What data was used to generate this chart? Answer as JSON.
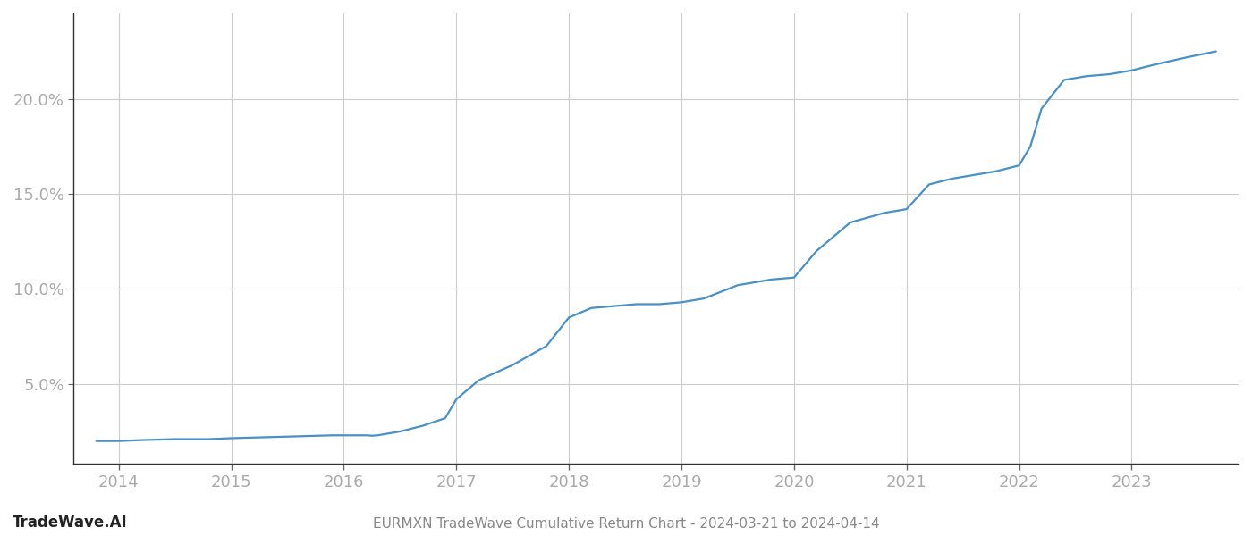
{
  "title": "EURMXN TradeWave Cumulative Return Chart - 2024-03-21 to 2024-04-14",
  "watermark": "TradeWave.AI",
  "line_color": "#4a90c4",
  "line_width": 1.6,
  "background_color": "#ffffff",
  "grid_color": "#cccccc",
  "tick_color": "#aaaaaa",
  "title_color": "#888888",
  "watermark_color": "#222222",
  "x_values": [
    2013.8,
    2014.0,
    2014.2,
    2014.5,
    2014.8,
    2015.0,
    2015.3,
    2015.6,
    2015.9,
    2016.0,
    2016.1,
    2016.2,
    2016.25,
    2016.3,
    2016.5,
    2016.7,
    2016.9,
    2017.0,
    2017.2,
    2017.5,
    2017.8,
    2018.0,
    2018.2,
    2018.4,
    2018.6,
    2018.8,
    2019.0,
    2019.2,
    2019.5,
    2019.8,
    2020.0,
    2020.2,
    2020.5,
    2020.8,
    2021.0,
    2021.2,
    2021.4,
    2021.6,
    2021.8,
    2022.0,
    2022.1,
    2022.2,
    2022.4,
    2022.6,
    2022.8,
    2023.0,
    2023.2,
    2023.5,
    2023.75
  ],
  "y_values": [
    2.0,
    2.0,
    2.05,
    2.1,
    2.1,
    2.15,
    2.2,
    2.25,
    2.3,
    2.3,
    2.3,
    2.3,
    2.28,
    2.3,
    2.5,
    2.8,
    3.2,
    4.2,
    5.2,
    6.0,
    7.0,
    8.5,
    9.0,
    9.1,
    9.2,
    9.2,
    9.3,
    9.5,
    10.2,
    10.5,
    10.6,
    12.0,
    13.5,
    14.0,
    14.2,
    15.5,
    15.8,
    16.0,
    16.2,
    16.5,
    17.5,
    19.5,
    21.0,
    21.2,
    21.3,
    21.5,
    21.8,
    22.2,
    22.5
  ],
  "xticks": [
    2014,
    2015,
    2016,
    2017,
    2018,
    2019,
    2020,
    2021,
    2022,
    2023
  ],
  "yticks": [
    5.0,
    10.0,
    15.0,
    20.0
  ],
  "ylim": [
    0.8,
    24.5
  ],
  "xlim": [
    2013.6,
    2023.95
  ]
}
